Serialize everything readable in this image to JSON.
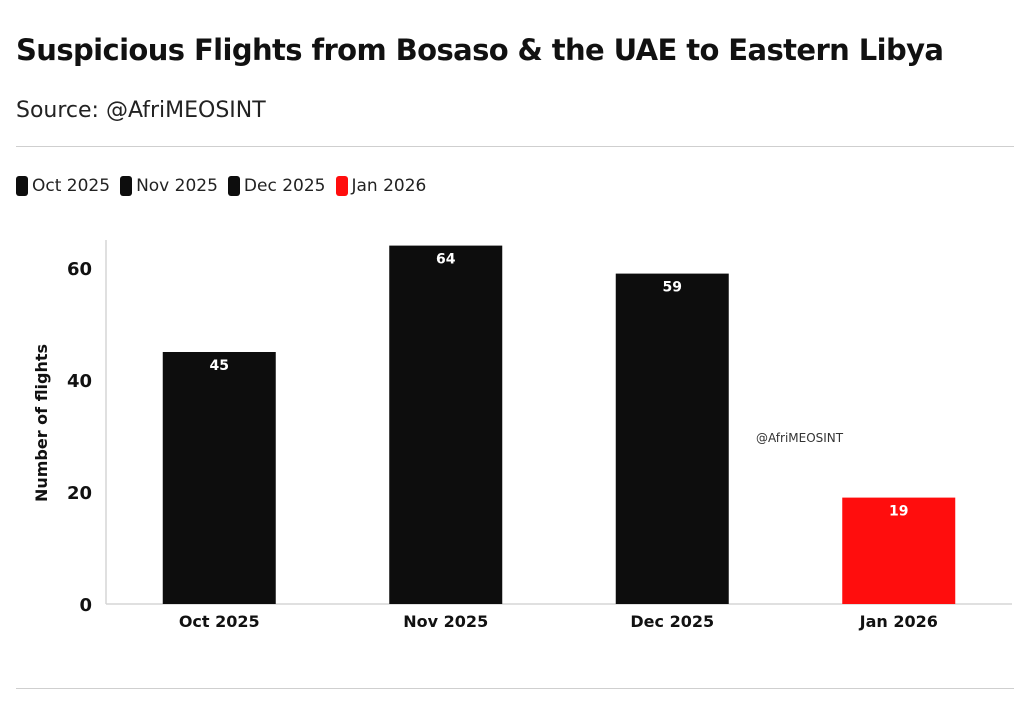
{
  "header": {
    "title": "Suspicious Flights from Bosaso & the UAE to Eastern Libya",
    "source": "Source: @AfriMEOSINT"
  },
  "watermark": "@AfriMEOSINT",
  "colors": {
    "bar_default": "#0d0d0d",
    "bar_highlight": "#ff0d0d"
  },
  "chart_data": {
    "type": "bar",
    "categories": [
      "Oct 2025",
      "Nov 2025",
      "Dec 2025",
      "Jan 2026"
    ],
    "values": [
      45,
      64,
      59,
      19
    ],
    "colors": [
      "#0d0d0d",
      "#0d0d0d",
      "#0d0d0d",
      "#ff0d0d"
    ],
    "data_labels": [
      "45",
      "64",
      "59",
      "19"
    ],
    "legend": {
      "placement": "top-left",
      "entries": [
        {
          "label": "Oct 2025",
          "color": "#0d0d0d"
        },
        {
          "label": "Nov 2025",
          "color": "#0d0d0d"
        },
        {
          "label": "Dec 2025",
          "color": "#0d0d0d"
        },
        {
          "label": "Jan 2026",
          "color": "#ff0d0d"
        }
      ]
    },
    "title": "Suspicious Flights from Bosaso & the UAE to Eastern Libya",
    "xlabel": "",
    "ylabel": "Number of flights",
    "ylim": [
      0,
      65
    ],
    "yticks": [
      0,
      20,
      40,
      60
    ],
    "grid": false
  }
}
